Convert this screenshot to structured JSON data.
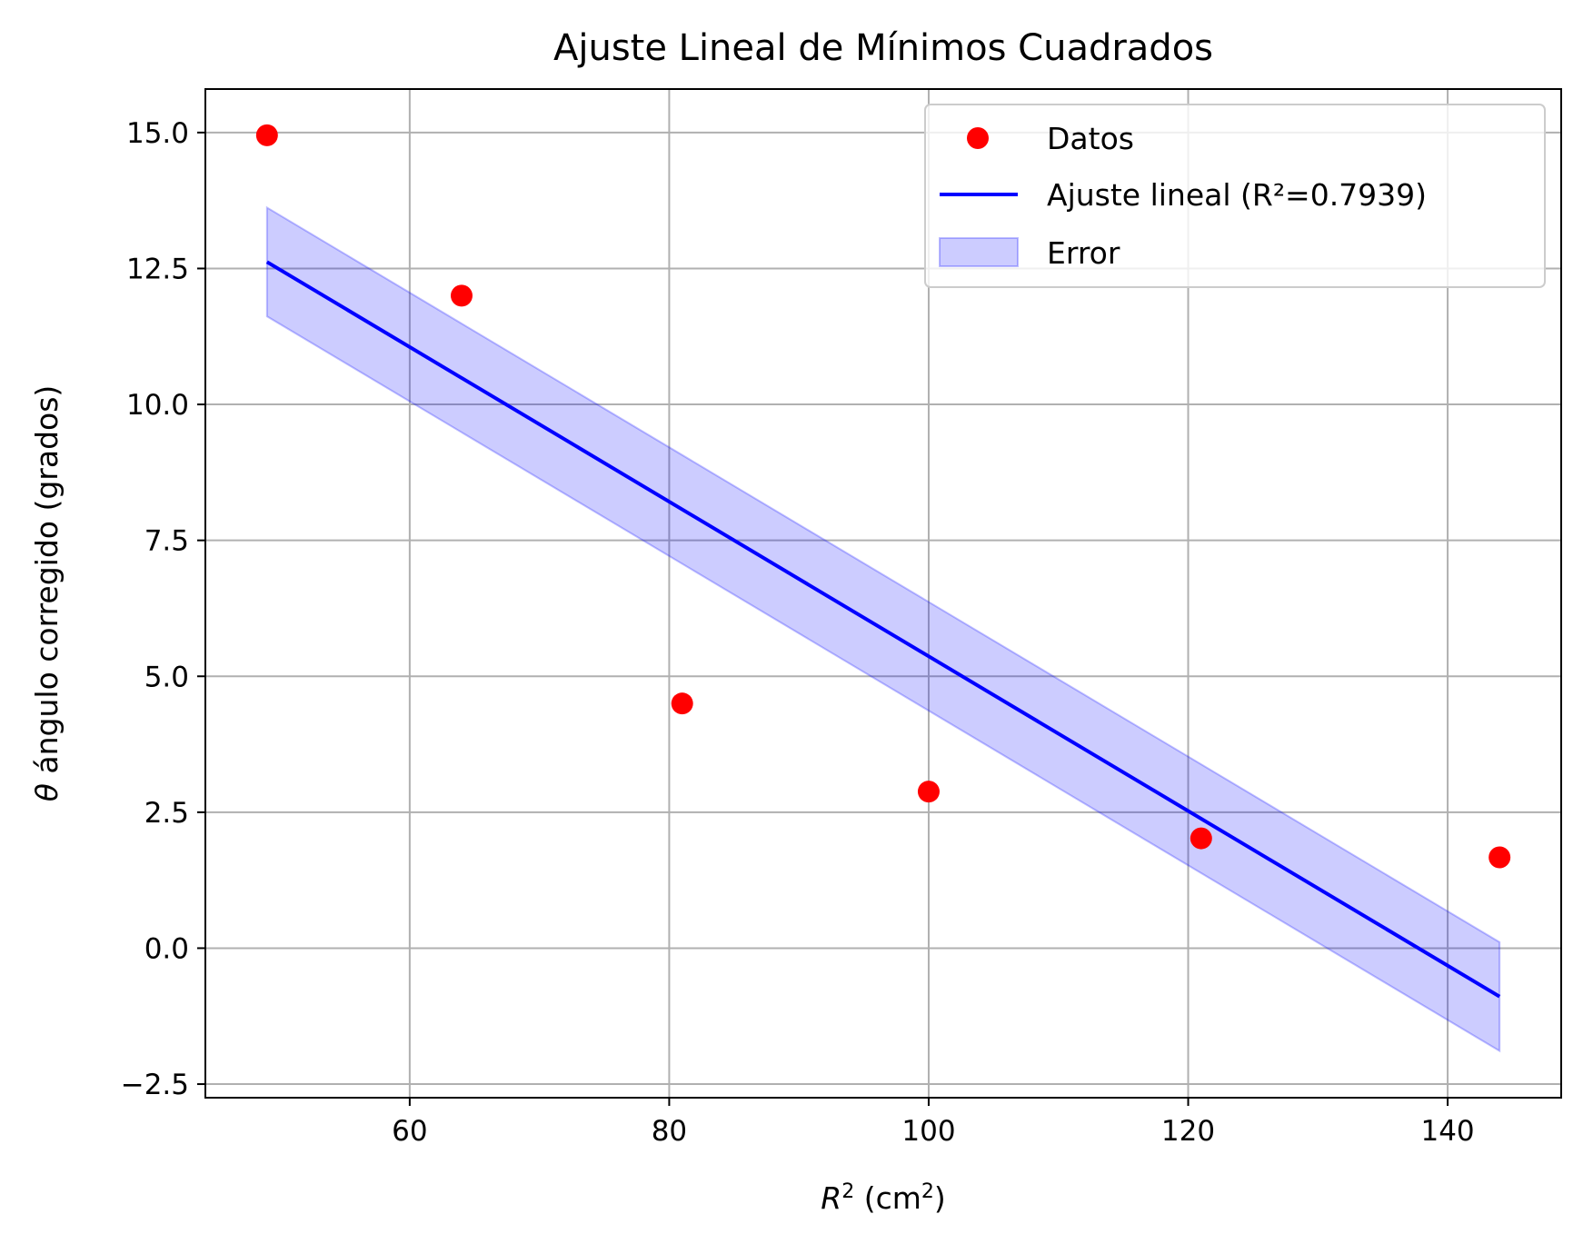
{
  "chart_data": {
    "type": "scatter",
    "title": "Ajuste Lineal de Mínimos Cuadrados",
    "xlabel": "R² (cm²)",
    "ylabel": "θ ángulo corregido (grados)",
    "xlim": [
      44.25,
      148.75
    ],
    "ylim": [
      -2.75,
      15.8
    ],
    "x_ticks": [
      60,
      80,
      100,
      120,
      140
    ],
    "x_tick_labels": [
      "60",
      "80",
      "100",
      "120",
      "140"
    ],
    "y_ticks": [
      -2.5,
      0.0,
      2.5,
      5.0,
      7.5,
      10.0,
      12.5,
      15.0
    ],
    "y_tick_labels": [
      "−2.5",
      "0.0",
      "2.5",
      "5.0",
      "7.5",
      "10.0",
      "12.5",
      "15.0"
    ],
    "grid": true,
    "legend_position": "top-right",
    "series": [
      {
        "name": "Datos",
        "kind": "scatter",
        "color": "#ff0000",
        "x": [
          49,
          64,
          81,
          100,
          121,
          144
        ],
        "y": [
          14.95,
          12.0,
          4.5,
          2.88,
          2.02,
          1.67
        ]
      },
      {
        "name": "Ajuste lineal (R²=0.7939)",
        "kind": "line",
        "color": "#0000ff",
        "x": [
          49,
          144
        ],
        "y": [
          12.62,
          -0.89
        ]
      },
      {
        "name": "Error",
        "kind": "band",
        "color": "#0000ff",
        "alpha": 0.2,
        "x": [
          49,
          144
        ],
        "y_lower": [
          11.62,
          -1.89
        ],
        "y_upper": [
          13.62,
          0.11
        ]
      }
    ]
  }
}
